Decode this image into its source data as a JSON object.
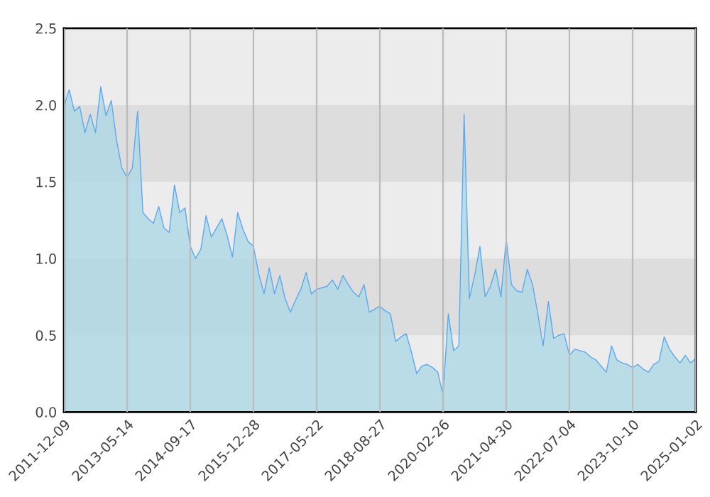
{
  "chart_data": {
    "type": "area",
    "categories": [
      "2011-12-09",
      null,
      null,
      null,
      null,
      null,
      null,
      null,
      null,
      null,
      null,
      null,
      "2013-05-14",
      null,
      null,
      null,
      null,
      null,
      null,
      null,
      null,
      null,
      null,
      null,
      "2014-09-17",
      null,
      null,
      null,
      null,
      null,
      null,
      null,
      null,
      null,
      null,
      null,
      "2015-12-28",
      null,
      null,
      null,
      null,
      null,
      null,
      null,
      null,
      null,
      null,
      null,
      "2017-05-22",
      null,
      null,
      null,
      null,
      null,
      null,
      null,
      null,
      null,
      null,
      null,
      "2018-08-27",
      null,
      null,
      null,
      null,
      null,
      null,
      null,
      null,
      null,
      null,
      null,
      "2020-02-26",
      null,
      null,
      null,
      null,
      null,
      null,
      null,
      null,
      null,
      null,
      null,
      "2021-04-30",
      null,
      null,
      null,
      null,
      null,
      null,
      null,
      null,
      null,
      null,
      null,
      "2022-07-04",
      null,
      null,
      null,
      null,
      null,
      null,
      null,
      null,
      null,
      null,
      null,
      "2023-10-10",
      null,
      null,
      null,
      null,
      null,
      null,
      null,
      null,
      null,
      null,
      null,
      "2025-01-02"
    ],
    "series": [
      {
        "color": "#5aa9f0",
        "values": [
          1.99,
          2.1,
          1.96,
          1.99,
          1.82,
          1.94,
          1.82,
          2.12,
          1.93,
          2.03,
          1.77,
          1.59,
          1.53,
          1.59,
          1.96,
          1.3,
          1.26,
          1.23,
          1.34,
          1.2,
          1.17,
          1.48,
          1.3,
          1.33,
          1.08,
          1.0,
          1.06,
          1.28,
          1.14,
          1.2,
          1.26,
          1.15,
          1.01,
          1.3,
          1.19,
          1.11,
          1.08,
          0.9,
          0.77,
          0.94,
          0.77,
          0.89,
          0.74,
          0.65,
          0.73,
          0.8,
          0.91,
          0.77,
          0.8,
          0.81,
          0.82,
          0.86,
          0.8,
          0.89,
          0.83,
          0.78,
          0.75,
          0.83,
          0.65,
          0.67,
          0.69,
          0.66,
          0.64,
          0.46,
          0.49,
          0.51,
          0.39,
          0.25,
          0.3,
          0.31,
          0.29,
          0.26,
          0.11,
          0.64,
          0.4,
          0.43,
          1.94,
          0.74,
          0.89,
          1.08,
          0.75,
          0.82,
          0.93,
          0.75,
          1.13,
          0.83,
          0.79,
          0.78,
          0.93,
          0.83,
          0.64,
          0.43,
          0.72,
          0.48,
          0.5,
          0.51,
          0.37,
          0.41,
          0.4,
          0.39,
          0.36,
          0.34,
          0.3,
          0.26,
          0.43,
          0.34,
          0.32,
          0.31,
          0.29,
          0.31,
          0.28,
          0.26,
          0.31,
          0.33,
          0.49,
          0.41,
          0.36,
          0.32,
          0.37,
          0.32,
          0.35
        ]
      }
    ],
    "ylim": [
      0,
      2.5
    ],
    "yticks": [
      {
        "value": 0,
        "label": "0.0"
      },
      {
        "value": 0.5,
        "label": "0.5"
      },
      {
        "value": 1,
        "label": "1.0"
      },
      {
        "value": 1.5,
        "label": "1.5"
      },
      {
        "value": 2,
        "label": "2.0"
      },
      {
        "value": 2.5,
        "label": "2.5"
      }
    ],
    "bands": [
      {
        "axis": "y",
        "from": 0.5,
        "to": 1.0,
        "color": "#dddddd"
      },
      {
        "axis": "y",
        "from": 1.5,
        "to": 2.0,
        "color": "#dddddd"
      }
    ],
    "grid": "x",
    "legend": false
  }
}
